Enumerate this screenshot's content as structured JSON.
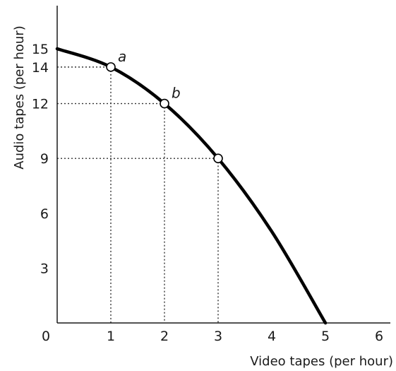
{
  "chart_data": {
    "type": "line",
    "title": "",
    "xlabel": "Video tapes (per hour)",
    "ylabel": "Audio tapes (per hour)",
    "xlim": [
      0,
      6
    ],
    "ylim": [
      0,
      15
    ],
    "x_ticks": [
      "0",
      "1",
      "2",
      "3",
      "4",
      "5",
      "6"
    ],
    "y_ticks": [
      "3",
      "6",
      "9",
      "12",
      "14",
      "15"
    ],
    "grid": false,
    "series": [
      {
        "x": [
          0,
          1,
          2,
          3,
          4,
          5
        ],
        "y": [
          15,
          14,
          12,
          9,
          5,
          0
        ]
      }
    ],
    "highlighted_points": [
      {
        "x": 1,
        "y": 14,
        "label": "a"
      },
      {
        "x": 2,
        "y": 12,
        "label": "b"
      },
      {
        "x": 3,
        "y": 9,
        "label": ""
      }
    ],
    "colors": {
      "curve": "#000000",
      "axis": "#1a1a1a",
      "guide": "#333333"
    }
  }
}
